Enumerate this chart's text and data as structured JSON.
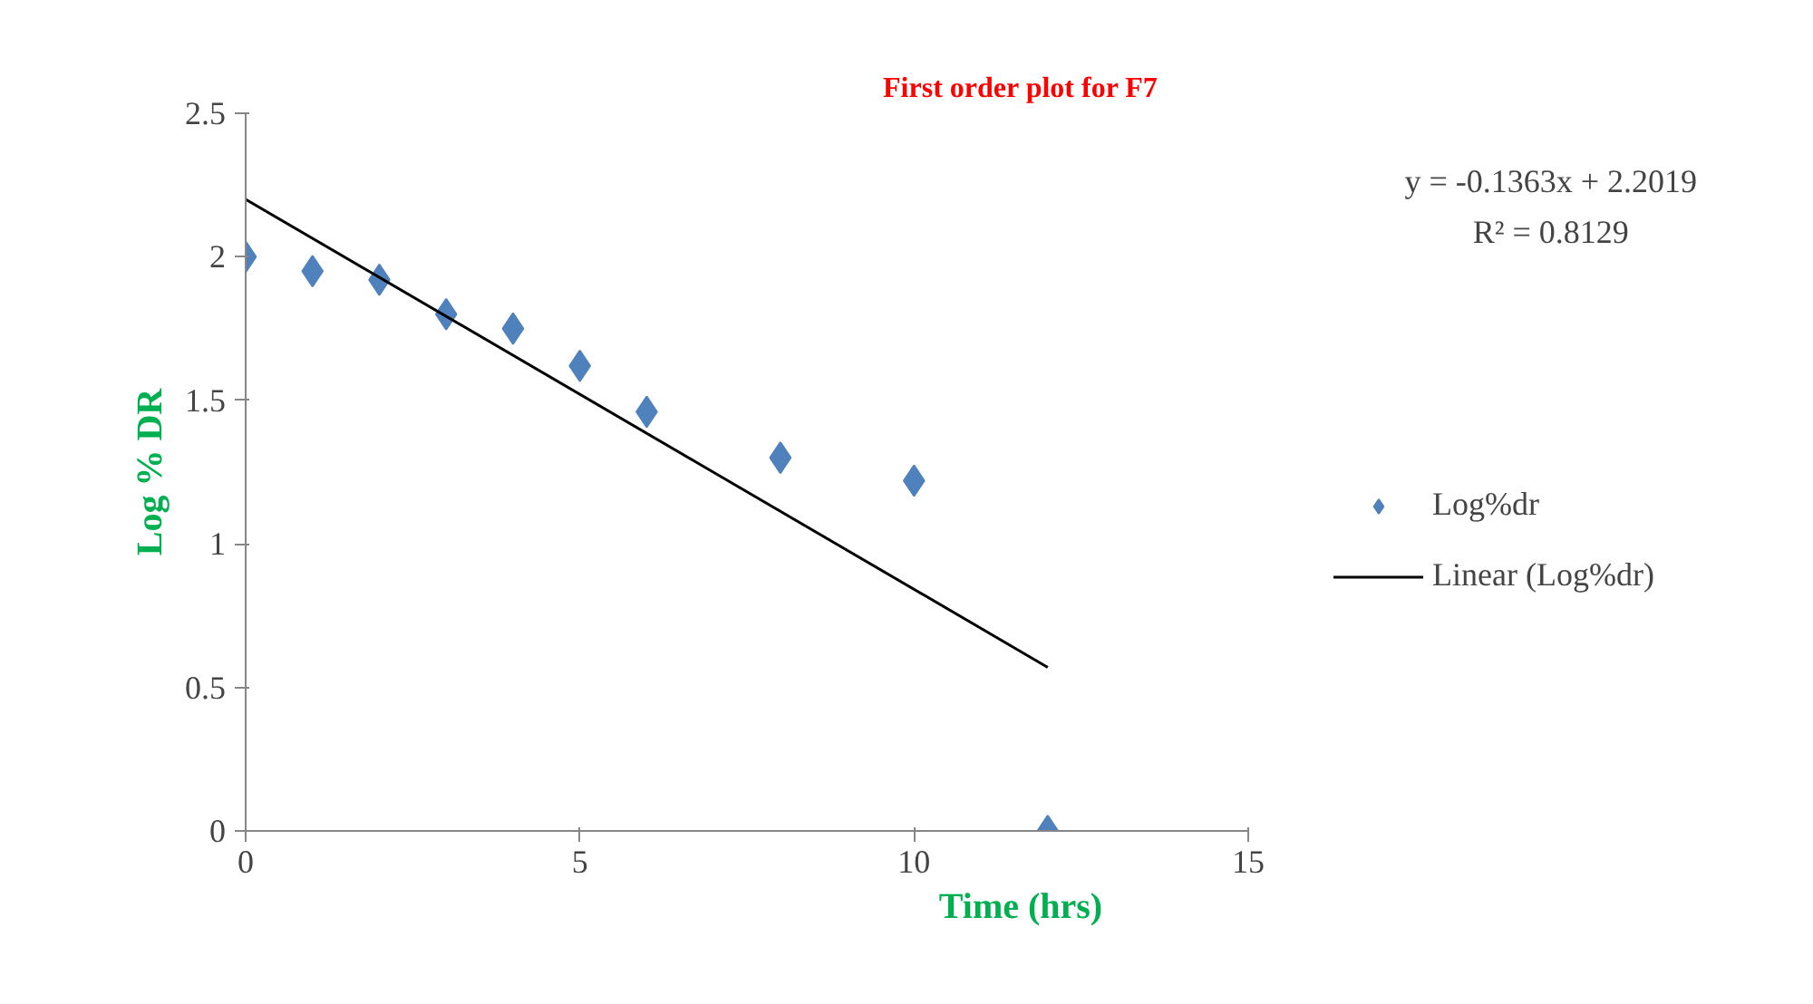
{
  "chart_data": {
    "type": "scatter",
    "title": "First order plot for F7",
    "xlabel": "Time (hrs)",
    "ylabel": "Log % DR",
    "x": [
      0,
      1,
      2,
      3,
      4,
      5,
      6,
      8,
      10,
      12
    ],
    "series": [
      {
        "name": "Log%dr",
        "color": "#4f81bd",
        "values": [
          2.0,
          1.95,
          1.92,
          1.8,
          1.75,
          1.62,
          1.46,
          1.3,
          1.22,
          0
        ],
        "marker": "diamond"
      },
      {
        "name": "Linear (Log%dr)",
        "type": "line",
        "color": "#000000",
        "x": [
          0,
          12
        ],
        "values": [
          2.2,
          0.57
        ],
        "marker": "none"
      }
    ],
    "xlim": [
      0,
      15
    ],
    "xticks": [
      0,
      5,
      10,
      15
    ],
    "ylim": [
      0,
      2.5
    ],
    "yticks": [
      0,
      0.5,
      1,
      1.5,
      2,
      2.5
    ],
    "annotations": [
      "y = -0.1363x + 2.2019",
      "R² = 0.8129"
    ],
    "grid": false,
    "legend": "right"
  }
}
